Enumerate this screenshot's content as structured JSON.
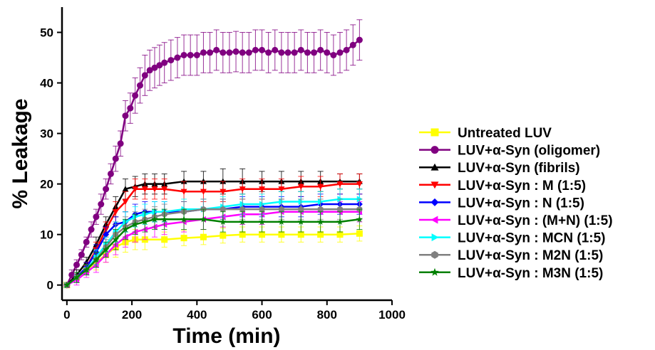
{
  "chart_data": {
    "type": "line",
    "xlabel": "Time (min)",
    "ylabel": "% Leakage",
    "xlim": [
      -15,
      1000
    ],
    "ylim": [
      -3,
      55
    ],
    "xticks": [
      0,
      200,
      400,
      600,
      800,
      1000
    ],
    "yticks": [
      0,
      10,
      20,
      30,
      40,
      50
    ],
    "grid": false,
    "legend_position": "right",
    "series": [
      {
        "name": "Untreated LUV",
        "color": "#ffff00",
        "marker": "square",
        "x": [
          0,
          30,
          60,
          90,
          120,
          150,
          180,
          210,
          240,
          300,
          360,
          420,
          480,
          540,
          600,
          660,
          720,
          780,
          840,
          900
        ],
        "y": [
          0,
          1.5,
          3,
          4.5,
          6,
          7.5,
          8.5,
          9,
          9,
          9,
          9.3,
          9.5,
          9.8,
          10,
          10,
          10,
          10,
          10,
          10,
          10.2
        ],
        "error": [
          0,
          1,
          1,
          1.5,
          1.5,
          2,
          2,
          2,
          2,
          1.5,
          1.5,
          1.5,
          1.5,
          1.5,
          1.5,
          1.5,
          1.5,
          1.5,
          1.5,
          1.5
        ]
      },
      {
        "name": "LUV+α-Syn (oligomer)",
        "color": "#800080",
        "marker": "circle",
        "x": [
          0,
          15,
          30,
          45,
          60,
          75,
          90,
          105,
          120,
          135,
          150,
          165,
          180,
          195,
          210,
          225,
          240,
          255,
          270,
          285,
          300,
          320,
          340,
          360,
          380,
          400,
          420,
          440,
          460,
          480,
          500,
          520,
          540,
          560,
          580,
          600,
          620,
          640,
          660,
          680,
          700,
          720,
          740,
          760,
          780,
          800,
          820,
          840,
          860,
          880,
          900
        ],
        "y": [
          0,
          2,
          4,
          6,
          8.5,
          11,
          13.5,
          16,
          19,
          22,
          25,
          28,
          33.5,
          35,
          37.5,
          39.5,
          41.5,
          42.5,
          43,
          43.5,
          44,
          44.5,
          45,
          45.5,
          45.5,
          45.5,
          46,
          46,
          46.5,
          46,
          46,
          46.2,
          46,
          46,
          46.5,
          46.5,
          46,
          46.5,
          46,
          46,
          46,
          46.5,
          46,
          46,
          46.5,
          46,
          45.5,
          46,
          46.5,
          47.5,
          48.5
        ],
        "error": [
          0,
          1,
          1,
          1,
          1,
          1.5,
          1.5,
          2,
          2,
          2,
          2.5,
          2.5,
          3,
          3,
          3.5,
          3.5,
          4,
          4,
          4,
          4,
          4,
          4,
          4,
          4,
          4,
          4,
          4,
          4,
          4,
          4,
          4,
          4,
          4,
          4,
          4,
          4,
          4,
          4,
          4,
          4,
          4,
          4,
          4,
          4,
          4,
          4,
          4,
          4,
          4,
          4,
          4
        ]
      },
      {
        "name": "LUV+α-Syn (fibrils)",
        "color": "#000000",
        "marker": "triangle-up",
        "x": [
          0,
          30,
          60,
          90,
          120,
          150,
          180,
          210,
          240,
          270,
          300,
          360,
          420,
          480,
          540,
          600,
          660,
          720,
          780,
          840,
          900
        ],
        "y": [
          0,
          2,
          4.5,
          8,
          12,
          15.5,
          19,
          19.5,
          20,
          20,
          20,
          20.5,
          20.5,
          20.5,
          20.5,
          20.5,
          20.5,
          20.5,
          20.5,
          20.5,
          20.5
        ],
        "error": [
          0,
          1,
          1,
          1.5,
          1.5,
          2,
          2,
          2,
          2,
          2,
          2,
          2,
          2,
          2.5,
          2.5,
          2,
          2,
          2,
          2,
          1.5,
          1.5
        ]
      },
      {
        "name": "LUV+α-Syn : M (1:5)",
        "color": "#ff0000",
        "marker": "triangle-down",
        "x": [
          0,
          30,
          60,
          90,
          120,
          150,
          180,
          210,
          240,
          270,
          300,
          360,
          420,
          480,
          540,
          600,
          660,
          720,
          780,
          840,
          900
        ],
        "y": [
          0,
          1.5,
          3.5,
          7,
          11,
          14.5,
          16.5,
          19,
          19,
          19,
          19,
          18.5,
          18.5,
          18.5,
          19,
          19,
          19,
          19.5,
          19.5,
          20,
          20
        ],
        "error": [
          0,
          1,
          1,
          1.5,
          1.5,
          2,
          2,
          2,
          2,
          2,
          2,
          2,
          2,
          2,
          2,
          2,
          2,
          2,
          2,
          2,
          2
        ]
      },
      {
        "name": "LUV+α-Syn : N (1:5)",
        "color": "#0000ff",
        "marker": "diamond",
        "x": [
          0,
          30,
          60,
          90,
          120,
          150,
          180,
          210,
          240,
          270,
          300,
          360,
          420,
          480,
          540,
          600,
          660,
          720,
          780,
          840,
          900
        ],
        "y": [
          0,
          1.5,
          3.5,
          6.5,
          10,
          12,
          12.5,
          14,
          14.5,
          14.5,
          14.5,
          14.5,
          15,
          15,
          15.5,
          15.5,
          15.5,
          15.5,
          16,
          16,
          16
        ],
        "error": [
          0,
          1,
          1,
          1.5,
          1.5,
          1.5,
          2,
          2,
          2,
          2,
          2,
          2,
          2,
          2,
          2,
          2,
          2,
          2,
          2,
          2,
          2
        ]
      },
      {
        "name": "LUV+α-Syn : (M+N) (1:5)",
        "color": "#ff00ff",
        "marker": "triangle-left",
        "x": [
          0,
          30,
          60,
          90,
          120,
          150,
          180,
          210,
          240,
          270,
          300,
          360,
          420,
          480,
          540,
          600,
          660,
          720,
          780,
          840,
          900
        ],
        "y": [
          0,
          1,
          2.5,
          4,
          6,
          8,
          9.5,
          10.5,
          11,
          11.5,
          12,
          12.5,
          13,
          13.5,
          14,
          14,
          14.5,
          14.5,
          14.5,
          14.5,
          14.5
        ],
        "error": [
          0,
          1,
          1,
          1.5,
          1.5,
          2,
          2,
          2,
          2,
          2,
          2,
          2,
          2,
          2,
          2,
          2,
          2,
          2,
          2,
          2,
          2
        ]
      },
      {
        "name": "LUV+α-Syn : MCN (1:5)",
        "color": "#00ffff",
        "marker": "triangle-right",
        "x": [
          0,
          30,
          60,
          90,
          120,
          150,
          180,
          210,
          240,
          270,
          300,
          360,
          420,
          480,
          540,
          600,
          660,
          720,
          780,
          840,
          900
        ],
        "y": [
          0,
          1.5,
          3,
          5.5,
          8,
          10.5,
          12.5,
          13.5,
          14,
          14.5,
          14.5,
          15,
          15,
          15.5,
          16,
          16,
          16.5,
          16.5,
          16.5,
          17,
          17
        ],
        "error": [
          0,
          1,
          1,
          1.5,
          1.5,
          2,
          2,
          2,
          2,
          2,
          2,
          2,
          2,
          2,
          2,
          2,
          2,
          2,
          2,
          2,
          2
        ]
      },
      {
        "name": "LUV+α-Syn : M2N (1:5)",
        "color": "#808080",
        "marker": "hexagon",
        "x": [
          0,
          30,
          60,
          90,
          120,
          150,
          180,
          210,
          240,
          270,
          300,
          360,
          420,
          480,
          540,
          600,
          660,
          720,
          780,
          840,
          900
        ],
        "y": [
          0,
          1.5,
          3,
          5,
          7.5,
          10,
          11.5,
          12.5,
          13,
          13.5,
          14,
          14.5,
          15,
          15,
          15,
          15,
          15,
          15,
          15,
          15,
          15
        ],
        "error": [
          0,
          1,
          1,
          1.5,
          1.5,
          2,
          2,
          2,
          2,
          2,
          2,
          2,
          2,
          2,
          2,
          2,
          2,
          2,
          2,
          2,
          2
        ]
      },
      {
        "name": "LUV+α-Syn : M3N (1:5)",
        "color": "#008000",
        "marker": "star",
        "x": [
          0,
          30,
          60,
          90,
          120,
          150,
          180,
          210,
          240,
          270,
          300,
          360,
          420,
          480,
          540,
          600,
          660,
          720,
          780,
          840,
          900
        ],
        "y": [
          0,
          1.5,
          3,
          5,
          7,
          9,
          11,
          12,
          12.5,
          13,
          13,
          13,
          13,
          12.5,
          12.5,
          12.5,
          12.5,
          12.5,
          12.5,
          12.5,
          13
        ],
        "error": [
          0,
          1,
          1,
          1.5,
          1.5,
          2,
          2,
          2,
          2,
          2,
          2,
          2,
          2,
          2,
          2,
          2,
          2,
          2,
          2,
          2,
          2
        ]
      }
    ]
  }
}
